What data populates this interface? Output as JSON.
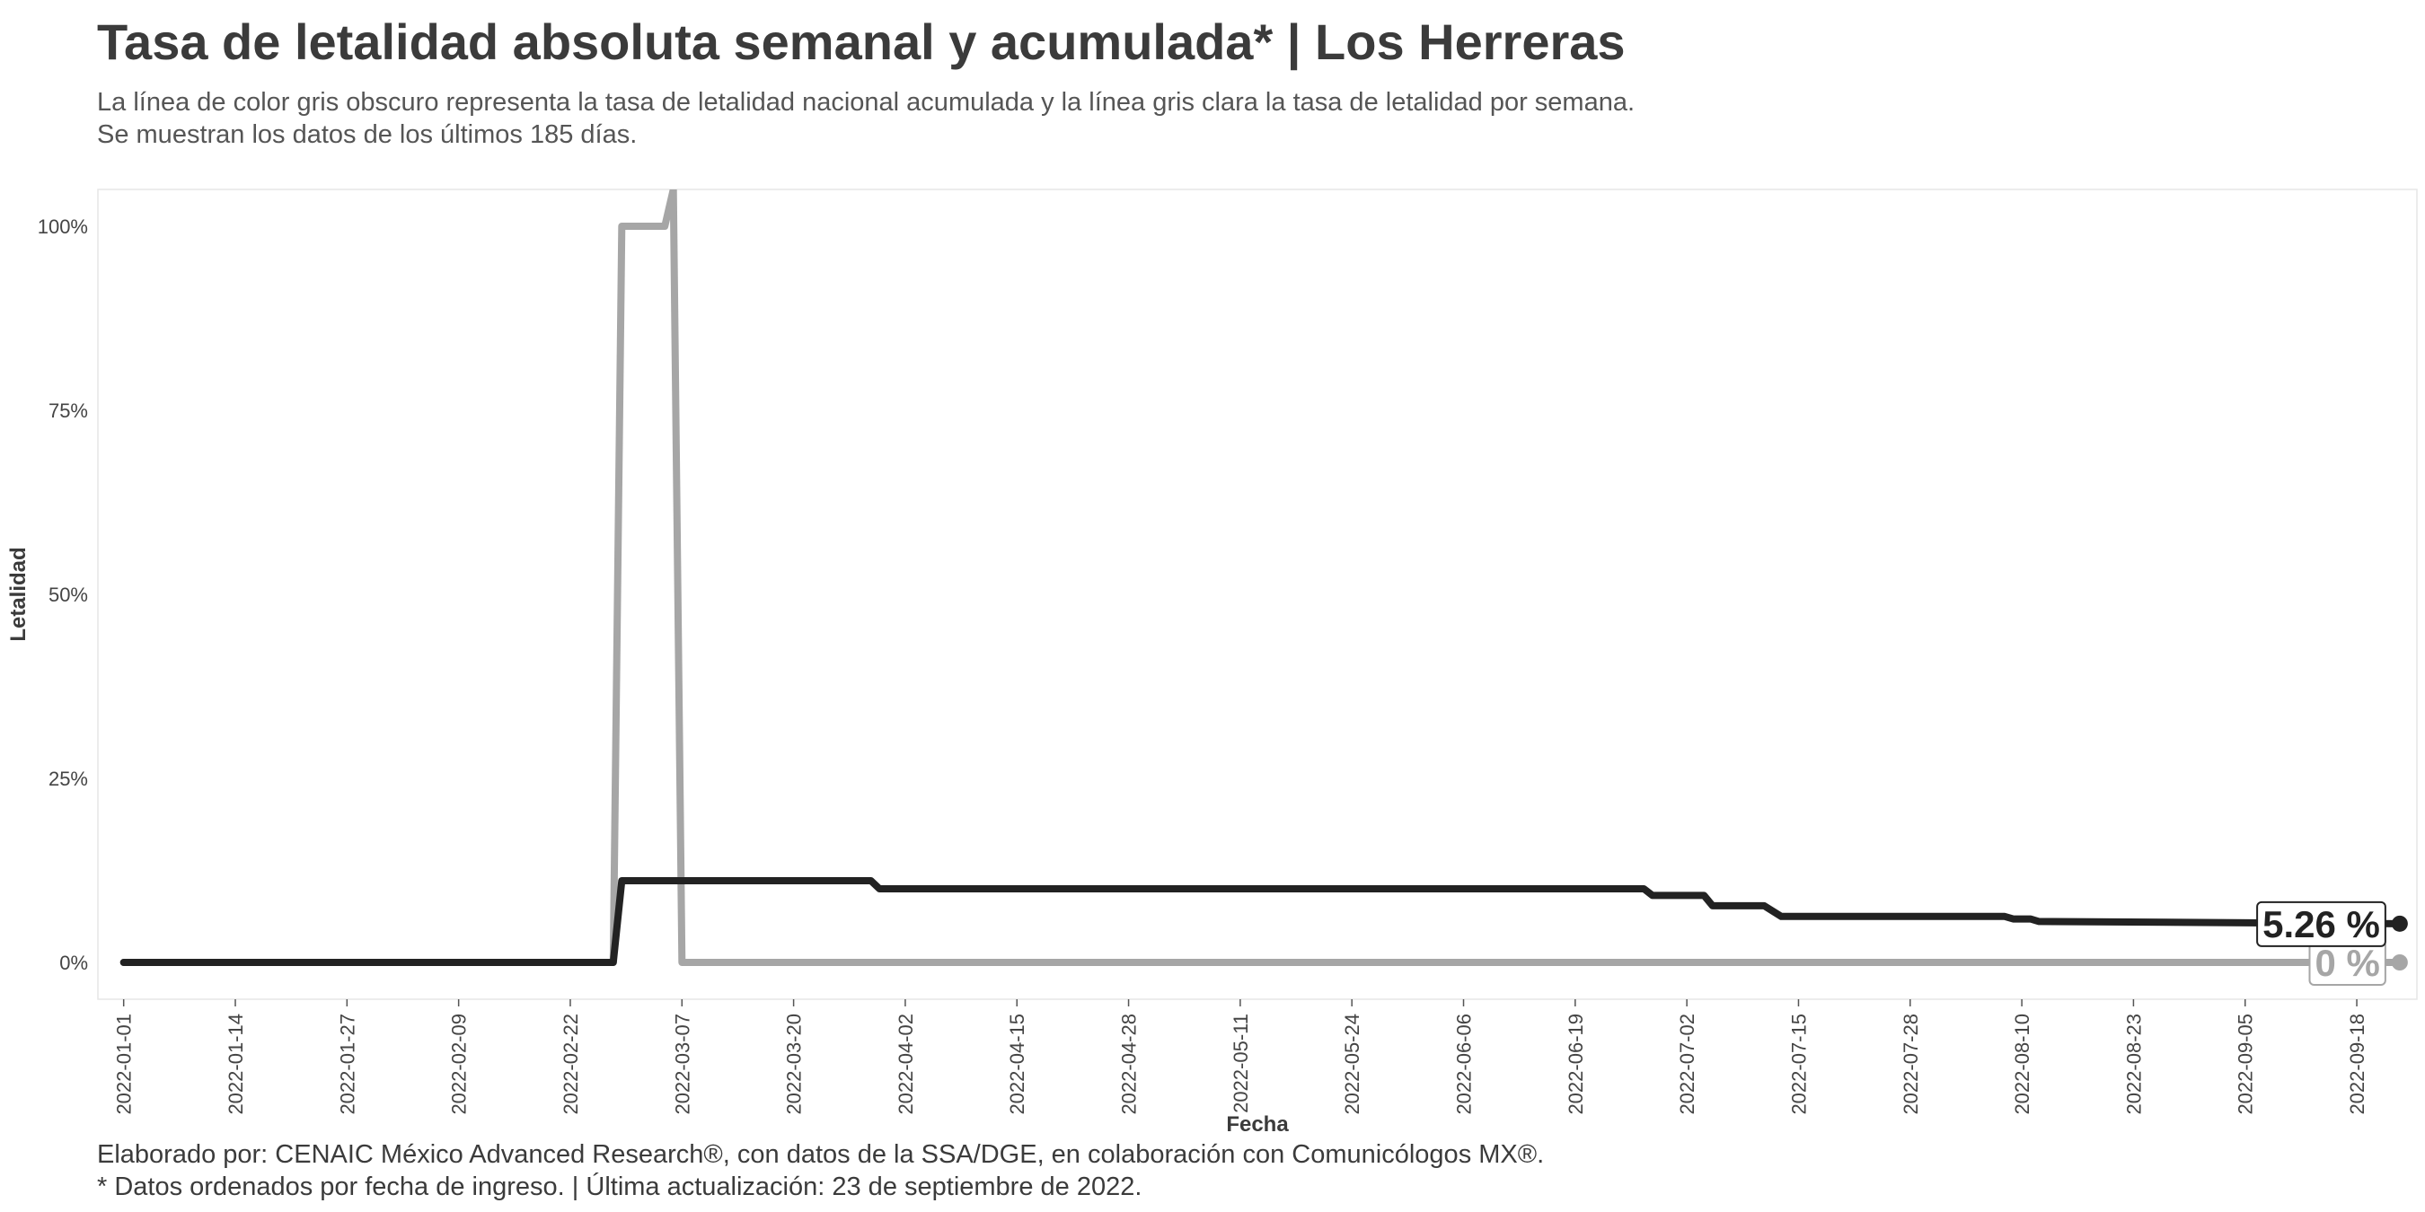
{
  "chart_data": {
    "type": "line",
    "title": "Tasa de letalidad absoluta semanal y acumulada* | Los Herreras",
    "subtitle_lines": [
      "La línea de color gris obscuro representa la tasa de letalidad nacional acumulada y la línea gris clara la tasa de letalidad por semana.",
      "Se muestran los datos de los últimos 185 días."
    ],
    "caption_lines": [
      "Elaborado por: CENAIC México Advanced Research®, con datos de la SSA/DGE, en colaboración con Comunicólogos MX®.",
      "* Datos ordenados por fecha de ingreso. | Última actualización: 23 de septiembre de 2022."
    ],
    "xlabel": "Fecha",
    "ylabel": "Letalidad",
    "x_start": "2022-01-01",
    "x_end": "2022-09-23",
    "xlim": [
      "2021-12-29",
      "2022-09-25"
    ],
    "ylim": [
      -5,
      105
    ],
    "x_ticks": [
      "2022-01-01",
      "2022-01-14",
      "2022-01-27",
      "2022-02-09",
      "2022-02-22",
      "2022-03-07",
      "2022-03-20",
      "2022-04-02",
      "2022-04-15",
      "2022-04-28",
      "2022-05-11",
      "2022-05-24",
      "2022-06-06",
      "2022-06-19",
      "2022-07-02",
      "2022-07-15",
      "2022-07-28",
      "2022-08-10",
      "2022-08-23",
      "2022-09-05",
      "2022-09-18"
    ],
    "y_ticks": [
      0,
      25,
      50,
      75,
      100
    ],
    "y_tick_labels": [
      "0%",
      "25%",
      "50%",
      "75%",
      "100%"
    ],
    "grid": false,
    "series": [
      {
        "role": "semanal",
        "color": "#a6a6a6",
        "points": [
          [
            "2022-01-01",
            0
          ],
          [
            "2022-02-22",
            0
          ],
          [
            "2022-02-27",
            0
          ],
          [
            "2022-02-28",
            100
          ],
          [
            "2022-03-05",
            100
          ],
          [
            "2022-03-06",
            105
          ],
          [
            "2022-03-07",
            0
          ],
          [
            "2022-09-23",
            0
          ]
        ],
        "end_label": "0 %"
      },
      {
        "role": "acumulada",
        "color": "#222222",
        "points": [
          [
            "2022-01-01",
            0
          ],
          [
            "2022-02-27",
            0
          ],
          [
            "2022-02-28",
            11.1
          ],
          [
            "2022-03-29",
            11.1
          ],
          [
            "2022-03-30",
            10
          ],
          [
            "2022-06-27",
            10
          ],
          [
            "2022-06-28",
            9.1
          ],
          [
            "2022-07-04",
            9.1
          ],
          [
            "2022-07-05",
            7.7
          ],
          [
            "2022-07-11",
            7.7
          ],
          [
            "2022-07-13",
            6.25
          ],
          [
            "2022-08-08",
            6.25
          ],
          [
            "2022-08-09",
            5.9
          ],
          [
            "2022-08-11",
            5.9
          ],
          [
            "2022-08-12",
            5.56
          ],
          [
            "2022-09-23",
            5.26
          ]
        ],
        "end_label": "5.26 %"
      }
    ]
  }
}
